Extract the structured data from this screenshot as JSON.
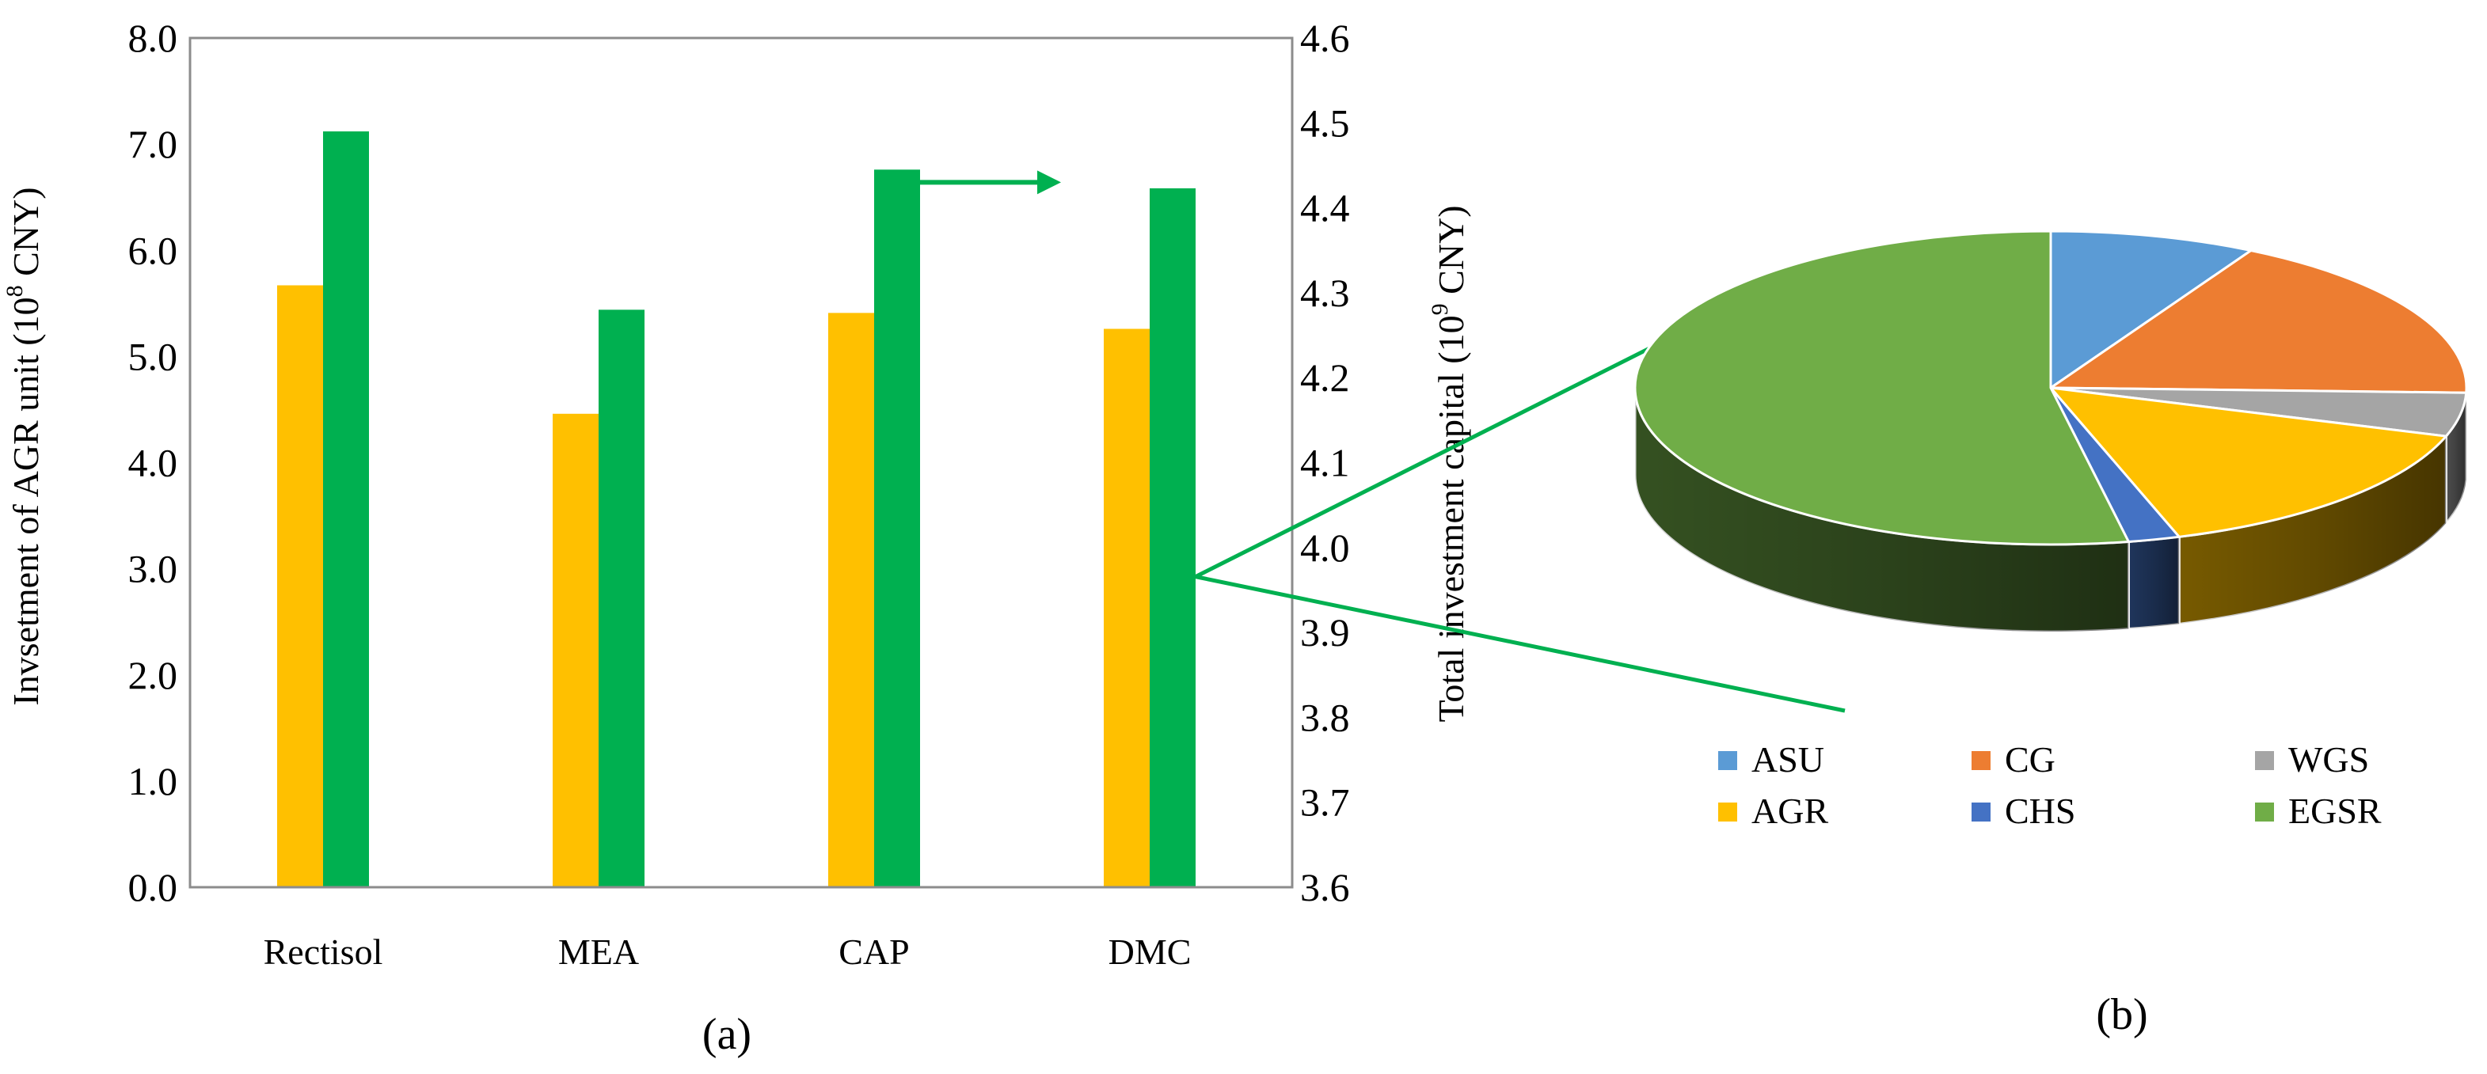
{
  "chart_data": [
    {
      "type": "bar",
      "panel_label": "(a)",
      "categories": [
        "Rectisol",
        "MEA",
        "CAP",
        "DMC"
      ],
      "ylabel_left_prefix": "Invsetment of AGR unit (10",
      "ylabel_left_exp": "8",
      "ylabel_left_suffix": " CNY)",
      "ylabel_right_prefix": "Total investment capital (10",
      "ylabel_right_exp": "9",
      "ylabel_right_suffix": " CNY)",
      "ylim_left": [
        0,
        8
      ],
      "ylim_right": [
        3.6,
        4.6
      ],
      "yticks_left": [
        "0.0",
        "1.0",
        "2.0",
        "3.0",
        "4.0",
        "5.0",
        "6.0",
        "7.0",
        "8.0"
      ],
      "yticks_right": [
        "3.6",
        "3.7",
        "3.8",
        "3.9",
        "4.0",
        "4.1",
        "4.2",
        "4.3",
        "4.4",
        "4.5",
        "4.6"
      ],
      "grid": false,
      "series": [
        {
          "axis": "left",
          "color": "#FFC000",
          "values": [
            5.67,
            4.46,
            5.41,
            5.26
          ]
        },
        {
          "axis": "right",
          "color": "#00B050",
          "values": [
            4.49,
            4.28,
            4.445,
            4.423
          ]
        }
      ],
      "annotation_arrow": {
        "from_category": "CAP",
        "to_category": "DMC",
        "at_value_right": 4.43,
        "color": "#00B050"
      }
    },
    {
      "type": "pie",
      "style": "3d-exploded-from-DMC-bar",
      "panel_label": "(b)",
      "legend_position": "bottom",
      "slices": [
        {
          "label": "ASU",
          "value": 8.0,
          "color": "#5B9BD5"
        },
        {
          "label": "CG",
          "value": 17.5,
          "color": "#ED7D31"
        },
        {
          "label": "WGS",
          "value": 4.5,
          "color": "#A5A5A5"
        },
        {
          "label": "AGR",
          "value": 15.0,
          "color": "#FFC000"
        },
        {
          "label": "CHS",
          "value": 2.0,
          "color": "#4472C4"
        },
        {
          "label": "EGSR",
          "value": 53.0,
          "color": "#70AD47"
        }
      ],
      "legend_order": [
        "ASU",
        "CG",
        "WGS",
        "AGR",
        "CHS",
        "EGSR"
      ]
    }
  ]
}
